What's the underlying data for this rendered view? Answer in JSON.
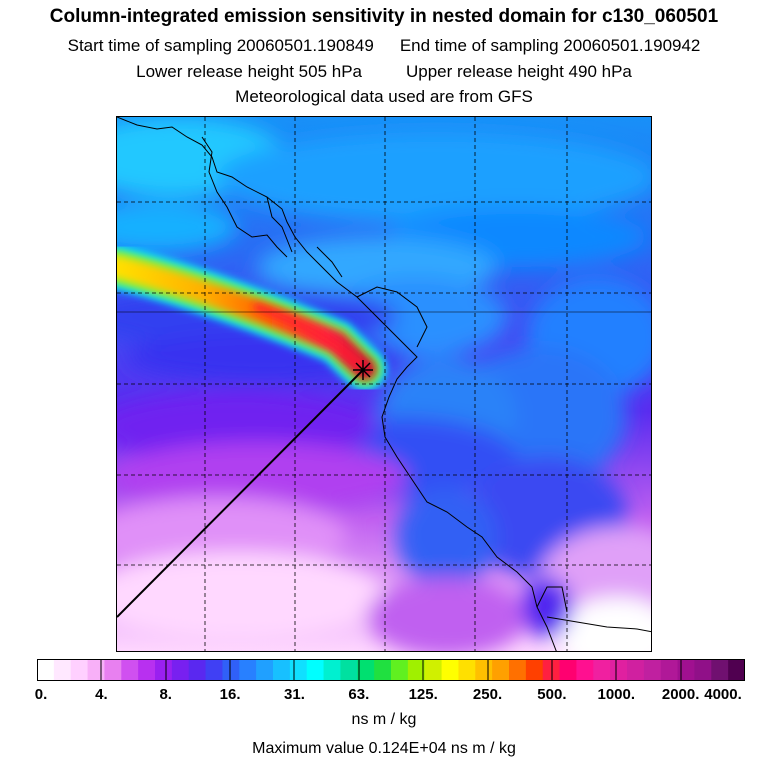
{
  "header": {
    "title": "Column-integrated emission sensitivity in nested domain for c130_060501",
    "start_label": "Start time of sampling 20060501.190849",
    "end_label": "End time of sampling 20060501.190942",
    "lower_label": "Lower release height  505 hPa",
    "upper_label": "Upper release height  490 hPa",
    "met_label": "Meteorological data used are from GFS"
  },
  "legend": {
    "ticks": [
      "0.",
      "4.",
      "8.",
      "16.",
      "31.",
      "63.",
      "125.",
      "250.",
      "500.",
      "1000.",
      "2000.",
      "4000."
    ],
    "colors": [
      "#ffffff",
      "#ffe8ff",
      "#ffd0ff",
      "#f8b0f8",
      "#e880f0",
      "#d050f0",
      "#b830f0",
      "#9a20f0",
      "#7820f0",
      "#5a28f0",
      "#4040f4",
      "#3060f8",
      "#2880ff",
      "#20a0ff",
      "#18c0ff",
      "#10e0ff",
      "#00ffff",
      "#00f0d0",
      "#00e0a0",
      "#00e070",
      "#20e040",
      "#60f020",
      "#a0f000",
      "#d0f000",
      "#ffff00",
      "#ffe000",
      "#ffc000",
      "#ffa000",
      "#ff7000",
      "#ff4000",
      "#ff2040",
      "#ff0070",
      "#ff1090",
      "#f020a0",
      "#e020a0",
      "#d020a0",
      "#c020a0",
      "#b01898",
      "#a01090",
      "#901088",
      "#701070",
      "#500050"
    ],
    "units": "ns m / kg",
    "max_value_text": "Maximum value  0.124E+04 ns m / kg"
  },
  "map": {
    "release_marker": "release-point"
  }
}
